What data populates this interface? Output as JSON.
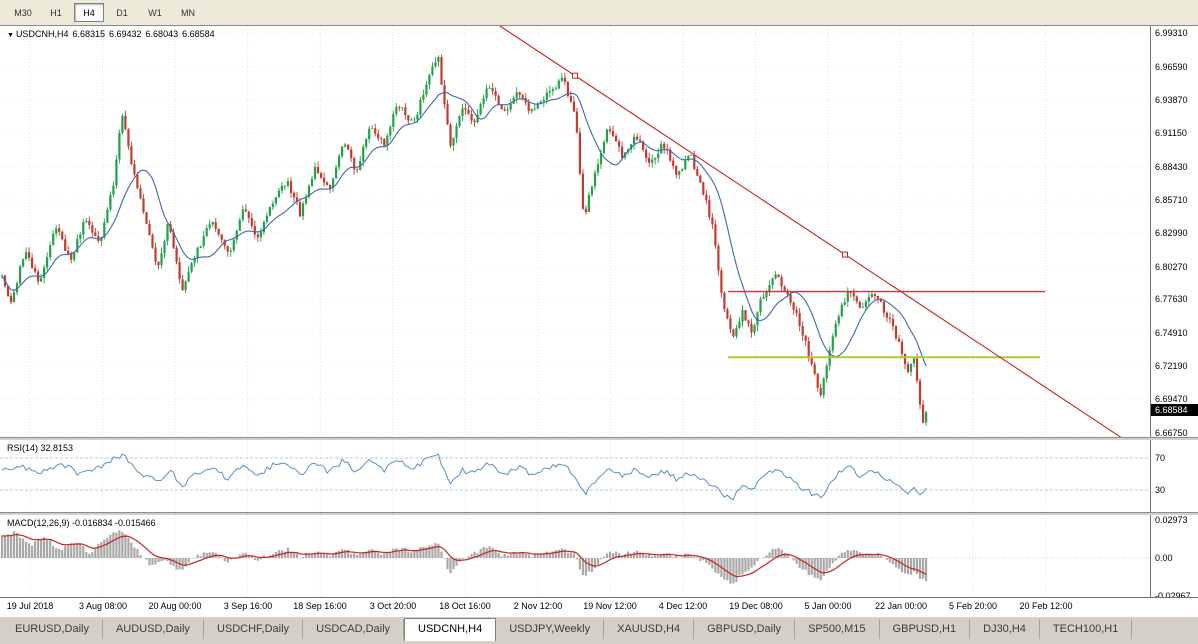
{
  "toolbar": {
    "timeframes": [
      {
        "label": "M30",
        "active": false
      },
      {
        "label": "H1",
        "active": false
      },
      {
        "label": "H4",
        "active": true
      },
      {
        "label": "D1",
        "active": false
      },
      {
        "label": "W1",
        "active": false
      },
      {
        "label": "MN",
        "active": false
      }
    ]
  },
  "chart_title": {
    "collapse_icon": "▼",
    "symbol": "USDCNH,H4",
    "open": "6.68315",
    "high": "6.69432",
    "low": "6.68043",
    "close": "6.68584"
  },
  "price_axis": {
    "ticks": [
      {
        "label": "6.99310",
        "value": 6.9931
      },
      {
        "label": "6.96590",
        "value": 6.9659
      },
      {
        "label": "6.93870",
        "value": 6.9387
      },
      {
        "label": "6.91150",
        "value": 6.9115
      },
      {
        "label": "6.88430",
        "value": 6.8843
      },
      {
        "label": "6.85710",
        "value": 6.8571
      },
      {
        "label": "6.82990",
        "value": 6.8299
      },
      {
        "label": "6.80270",
        "value": 6.8027
      },
      {
        "label": "6.77630",
        "value": 6.7763
      },
      {
        "label": "6.74910",
        "value": 6.7491
      },
      {
        "label": "6.72190",
        "value": 6.7219
      },
      {
        "label": "6.69470",
        "value": 6.6947
      },
      {
        "label": "6.66750",
        "value": 6.6675
      }
    ],
    "current_price_label": "6.68584",
    "current_price": 6.68584
  },
  "time_axis": {
    "labels": [
      "19 Jul 2018",
      "3 Aug 08:00",
      "20 Aug 00:00",
      "3 Sep 16:00",
      "18 Sep 16:00",
      "3 Oct 20:00",
      "18 Oct 16:00",
      "2 Nov 12:00",
      "19 Nov 12:00",
      "4 Dec 12:00",
      "19 Dec 08:00",
      "5 Jan 00:00",
      "22 Jan 00:00",
      "5 Feb 20:00",
      "20 Feb 12:00"
    ]
  },
  "indicators": {
    "rsi": {
      "label": "RSI(14) 32.8153",
      "last_value": 32.8153,
      "levels": [
        {
          "label": "70",
          "value": 70
        },
        {
          "label": "30",
          "value": 30
        }
      ]
    },
    "macd": {
      "label": "MACD(12,26,9) -0.016834 -0.015466",
      "macd_value": -0.016834,
      "signal_value": -0.015466,
      "axis_ticks": [
        {
          "label": "0.02973",
          "value": 0.02973
        },
        {
          "label": "0.00",
          "value": 0
        },
        {
          "label": "-0.02967",
          "value": -0.02967
        }
      ]
    }
  },
  "tabs": {
    "items": [
      {
        "label": "EURUSD,Daily",
        "active": false
      },
      {
        "label": "AUDUSD,Daily",
        "active": false
      },
      {
        "label": "USDCHF,Daily",
        "active": false
      },
      {
        "label": "USDCAD,Daily",
        "active": false
      },
      {
        "label": "USDCNH,H4",
        "active": true
      },
      {
        "label": "USDJPY,Weekly",
        "active": false
      },
      {
        "label": "XAUUSD,H4",
        "active": false
      },
      {
        "label": "GBPUSD,Daily",
        "active": false
      },
      {
        "label": "SP500,M15",
        "active": false
      },
      {
        "label": "GBPUSD,H1",
        "active": false
      },
      {
        "label": "DJ30,H4",
        "active": false
      },
      {
        "label": "TECH100,H1",
        "active": false
      }
    ]
  },
  "chart_data": {
    "type": "candlestick",
    "symbol": "USDCNH",
    "timeframe": "H4",
    "title": "USDCNH,H4",
    "ylim": [
      6.664,
      6.999
    ],
    "bars": 308,
    "candle_up_color": "#21a249",
    "candle_down_color": "#c43a2f",
    "ma_color": "#4169aa",
    "close_path_anchors": [
      [
        2,
        6.795
      ],
      [
        12,
        6.772
      ],
      [
        25,
        6.818
      ],
      [
        40,
        6.788
      ],
      [
        55,
        6.838
      ],
      [
        70,
        6.808
      ],
      [
        85,
        6.842
      ],
      [
        100,
        6.822
      ],
      [
        113,
        6.868
      ],
      [
        122,
        6.928
      ],
      [
        132,
        6.885
      ],
      [
        145,
        6.842
      ],
      [
        158,
        6.8
      ],
      [
        168,
        6.838
      ],
      [
        183,
        6.783
      ],
      [
        197,
        6.815
      ],
      [
        212,
        6.842
      ],
      [
        228,
        6.812
      ],
      [
        243,
        6.85
      ],
      [
        258,
        6.826
      ],
      [
        272,
        6.856
      ],
      [
        288,
        6.872
      ],
      [
        300,
        6.846
      ],
      [
        315,
        6.882
      ],
      [
        330,
        6.864
      ],
      [
        344,
        6.906
      ],
      [
        356,
        6.878
      ],
      [
        370,
        6.92
      ],
      [
        384,
        6.902
      ],
      [
        398,
        6.936
      ],
      [
        413,
        6.918
      ],
      [
        428,
        6.958
      ],
      [
        438,
        6.974
      ],
      [
        450,
        6.902
      ],
      [
        462,
        6.932
      ],
      [
        475,
        6.918
      ],
      [
        488,
        6.954
      ],
      [
        503,
        6.928
      ],
      [
        518,
        6.944
      ],
      [
        532,
        6.928
      ],
      [
        547,
        6.942
      ],
      [
        563,
        6.956
      ],
      [
        575,
        6.928
      ],
      [
        584,
        6.842
      ],
      [
        596,
        6.882
      ],
      [
        608,
        6.92
      ],
      [
        622,
        6.894
      ],
      [
        636,
        6.91
      ],
      [
        650,
        6.884
      ],
      [
        663,
        6.904
      ],
      [
        677,
        6.878
      ],
      [
        690,
        6.894
      ],
      [
        702,
        6.868
      ],
      [
        712,
        6.838
      ],
      [
        722,
        6.778
      ],
      [
        733,
        6.742
      ],
      [
        742,
        6.768
      ],
      [
        752,
        6.748
      ],
      [
        762,
        6.778
      ],
      [
        773,
        6.796
      ],
      [
        783,
        6.788
      ],
      [
        793,
        6.772
      ],
      [
        803,
        6.748
      ],
      [
        812,
        6.722
      ],
      [
        820,
        6.698
      ],
      [
        830,
        6.736
      ],
      [
        840,
        6.768
      ],
      [
        850,
        6.784
      ],
      [
        860,
        6.77
      ],
      [
        870,
        6.78
      ],
      [
        880,
        6.774
      ],
      [
        890,
        6.758
      ],
      [
        900,
        6.738
      ],
      [
        908,
        6.718
      ],
      [
        914,
        6.73
      ],
      [
        918,
        6.7
      ],
      [
        924,
        6.67
      ],
      [
        926,
        6.686
      ]
    ],
    "trendline": {
      "color": "#cc2222",
      "x1": 500,
      "price1": 6.999,
      "x2": 1150,
      "price2": 6.648,
      "markers_x": [
        575,
        845
      ]
    },
    "hlines": [
      {
        "name": "resistance-line",
        "price": 6.7825,
        "x1": 728,
        "x2": 1045,
        "color": "#e03030",
        "width": 1.4
      },
      {
        "name": "support-line",
        "price": 6.729,
        "x1": 728,
        "x2": 1040,
        "color": "#b0c832",
        "width": 2
      }
    ],
    "rsi": {
      "color": "#5a8fc8",
      "level_line_color": "#b9cde4",
      "range": [
        2.5,
        92.5
      ],
      "anchors": [
        [
          2,
          55
        ],
        [
          20,
          60
        ],
        [
          40,
          52
        ],
        [
          60,
          63
        ],
        [
          80,
          50
        ],
        [
          100,
          58
        ],
        [
          122,
          75
        ],
        [
          140,
          52
        ],
        [
          158,
          40
        ],
        [
          170,
          55
        ],
        [
          183,
          34
        ],
        [
          197,
          52
        ],
        [
          212,
          60
        ],
        [
          228,
          44
        ],
        [
          243,
          60
        ],
        [
          258,
          48
        ],
        [
          272,
          60
        ],
        [
          288,
          64
        ],
        [
          300,
          50
        ],
        [
          315,
          62
        ],
        [
          330,
          52
        ],
        [
          344,
          68
        ],
        [
          356,
          50
        ],
        [
          370,
          66
        ],
        [
          384,
          55
        ],
        [
          398,
          68
        ],
        [
          413,
          56
        ],
        [
          428,
          70
        ],
        [
          438,
          74
        ],
        [
          450,
          38
        ],
        [
          462,
          55
        ],
        [
          475,
          50
        ],
        [
          488,
          64
        ],
        [
          503,
          48
        ],
        [
          518,
          58
        ],
        [
          532,
          50
        ],
        [
          547,
          58
        ],
        [
          563,
          64
        ],
        [
          575,
          48
        ],
        [
          584,
          25
        ],
        [
          596,
          42
        ],
        [
          608,
          60
        ],
        [
          622,
          48
        ],
        [
          636,
          56
        ],
        [
          650,
          45
        ],
        [
          663,
          54
        ],
        [
          677,
          44
        ],
        [
          690,
          52
        ],
        [
          702,
          42
        ],
        [
          712,
          36
        ],
        [
          722,
          25
        ],
        [
          733,
          20
        ],
        [
          742,
          35
        ],
        [
          752,
          30
        ],
        [
          762,
          45
        ],
        [
          773,
          55
        ],
        [
          783,
          50
        ],
        [
          793,
          42
        ],
        [
          803,
          32
        ],
        [
          812,
          26
        ],
        [
          820,
          20
        ],
        [
          830,
          38
        ],
        [
          840,
          52
        ],
        [
          850,
          58
        ],
        [
          860,
          48
        ],
        [
          870,
          53
        ],
        [
          880,
          50
        ],
        [
          890,
          40
        ],
        [
          900,
          32
        ],
        [
          908,
          26
        ],
        [
          914,
          35
        ],
        [
          920,
          24
        ],
        [
          926,
          33
        ]
      ]
    },
    "macd": {
      "bar_color": "#a8a8a8",
      "line_color": "#cc2222",
      "range": [
        -0.0313,
        0.0336
      ],
      "anchors": [
        [
          2,
          0.016
        ],
        [
          15,
          0.02
        ],
        [
          30,
          0.01
        ],
        [
          45,
          0.016
        ],
        [
          60,
          0.006
        ],
        [
          75,
          0.013
        ],
        [
          90,
          0.004
        ],
        [
          105,
          0.016
        ],
        [
          122,
          0.022
        ],
        [
          135,
          0.008
        ],
        [
          150,
          -0.006
        ],
        [
          165,
          -0.002
        ],
        [
          180,
          -0.01
        ],
        [
          195,
          0.001
        ],
        [
          212,
          0.006
        ],
        [
          228,
          -0.004
        ],
        [
          243,
          0.005
        ],
        [
          258,
          -0.002
        ],
        [
          272,
          0.004
        ],
        [
          288,
          0.007
        ],
        [
          300,
          0.001
        ],
        [
          315,
          0.005
        ],
        [
          330,
          0.002
        ],
        [
          344,
          0.008
        ],
        [
          356,
          0.002
        ],
        [
          370,
          0.007
        ],
        [
          384,
          0.003
        ],
        [
          398,
          0.008
        ],
        [
          413,
          0.005
        ],
        [
          428,
          0.01
        ],
        [
          438,
          0.012
        ],
        [
          450,
          -0.013
        ],
        [
          462,
          -0.002
        ],
        [
          475,
          0.004
        ],
        [
          488,
          0.009
        ],
        [
          503,
          0.002
        ],
        [
          518,
          0.005
        ],
        [
          532,
          0.002
        ],
        [
          547,
          0.005
        ],
        [
          563,
          0.007
        ],
        [
          575,
          0.002
        ],
        [
          584,
          -0.016
        ],
        [
          596,
          -0.006
        ],
        [
          608,
          0.005
        ],
        [
          622,
          0.003
        ],
        [
          636,
          0.005
        ],
        [
          650,
          0.001
        ],
        [
          663,
          0.004
        ],
        [
          677,
          0.001
        ],
        [
          690,
          0.003
        ],
        [
          702,
          -0.002
        ],
        [
          712,
          -0.008
        ],
        [
          722,
          -0.016
        ],
        [
          733,
          -0.021
        ],
        [
          742,
          -0.012
        ],
        [
          752,
          -0.008
        ],
        [
          762,
          0
        ],
        [
          773,
          0.007
        ],
        [
          783,
          0.006
        ],
        [
          793,
          -0.001
        ],
        [
          803,
          -0.009
        ],
        [
          812,
          -0.014
        ],
        [
          820,
          -0.017
        ],
        [
          830,
          -0.008
        ],
        [
          840,
          0.002
        ],
        [
          850,
          0.007
        ],
        [
          860,
          0.004
        ],
        [
          870,
          0.004
        ],
        [
          880,
          0.002
        ],
        [
          890,
          -0.004
        ],
        [
          900,
          -0.01
        ],
        [
          908,
          -0.014
        ],
        [
          914,
          -0.011
        ],
        [
          920,
          -0.015
        ],
        [
          926,
          -0.017
        ]
      ]
    }
  }
}
